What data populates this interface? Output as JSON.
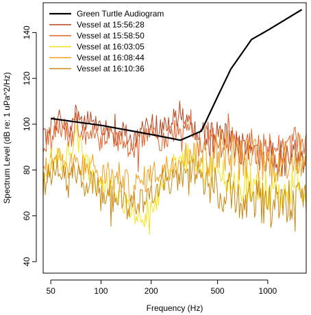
{
  "chart_data": {
    "type": "line",
    "x_scale": "log",
    "xlabel": "Frequency (Hz)",
    "ylabel": "Spectrum Level (dB re: 1 uPa^2/Hz)",
    "xlim": [
      45,
      1700
    ],
    "ylim": [
      35,
      153
    ],
    "x_ticks": [
      50,
      100,
      200,
      500,
      1000
    ],
    "y_ticks": [
      40,
      60,
      80,
      100,
      120,
      140
    ],
    "grid": false,
    "legend_position": "top-left",
    "audiogram": {
      "name": "Green Turtle Audiogram",
      "color": "#000000",
      "x": [
        50,
        100,
        200,
        300,
        400,
        500,
        600,
        800,
        1000,
        1600
      ],
      "y": [
        102.5,
        99.5,
        95.5,
        93,
        97,
        112,
        124,
        137,
        141,
        150
      ]
    },
    "vessels": [
      {
        "name": "Vessel at 15:56:28",
        "color": "#b5441f",
        "anchors_x": [
          45,
          50,
          55,
          60,
          65,
          70,
          75,
          80,
          90,
          100,
          110,
          120,
          130,
          150,
          170,
          200,
          230,
          260,
          300,
          350,
          400,
          450,
          500,
          600,
          700,
          800,
          1000,
          1200,
          1400,
          1700
        ],
        "anchors_y": [
          94,
          98,
          103,
          100,
          96,
          106,
          103,
          99,
          104,
          96,
          100,
          92,
          99,
          93,
          95,
          101,
          97,
          100,
          106,
          98,
          95,
          93,
          95,
          92,
          90,
          89,
          86,
          85,
          86,
          87
        ],
        "amplitude": 5
      },
      {
        "name": "Vessel at 15:58:50",
        "color": "#e0622c",
        "anchors_x": [
          45,
          50,
          55,
          60,
          65,
          70,
          75,
          80,
          90,
          100,
          110,
          120,
          130,
          150,
          170,
          200,
          230,
          260,
          300,
          350,
          400,
          450,
          500,
          600,
          700,
          800,
          1000,
          1200,
          1400,
          1700
        ],
        "anchors_y": [
          91,
          95,
          100,
          98,
          92,
          102,
          97,
          96,
          97,
          92,
          97,
          90,
          95,
          88,
          92,
          96,
          92,
          96,
          100,
          96,
          92,
          92,
          93,
          91,
          89,
          90,
          88,
          89,
          91,
          92
        ],
        "amplitude": 5
      },
      {
        "name": "Vessel at 16:03:05",
        "color": "#f5e31c",
        "anchors_x": [
          45,
          50,
          55,
          60,
          65,
          70,
          75,
          80,
          90,
          100,
          110,
          120,
          130,
          150,
          170,
          200,
          230,
          260,
          300,
          350,
          400,
          450,
          500,
          600,
          700,
          800,
          1000,
          1200,
          1400,
          1700
        ],
        "anchors_y": [
          80,
          84,
          85,
          83,
          88,
          96,
          89,
          84,
          78,
          72,
          74,
          68,
          70,
          62,
          57,
          64,
          72,
          80,
          84,
          86,
          82,
          80,
          78,
          75,
          73,
          72,
          71,
          72,
          73,
          74
        ],
        "amplitude": 6
      },
      {
        "name": "Vessel at 16:08:44",
        "color": "#f2a020",
        "anchors_x": [
          45,
          50,
          55,
          60,
          65,
          70,
          75,
          80,
          90,
          100,
          110,
          120,
          130,
          150,
          170,
          200,
          230,
          260,
          300,
          350,
          400,
          450,
          500,
          600,
          700,
          800,
          1000,
          1200,
          1400,
          1700
        ],
        "anchors_y": [
          78,
          82,
          87,
          84,
          80,
          86,
          84,
          80,
          82,
          76,
          80,
          75,
          78,
          72,
          74,
          78,
          80,
          82,
          86,
          88,
          86,
          85,
          90,
          88,
          84,
          86,
          82,
          84,
          86,
          84
        ],
        "amplitude": 6
      },
      {
        "name": "Vessel at 16:10:36",
        "color": "#c9860f",
        "anchors_x": [
          45,
          50,
          55,
          60,
          65,
          70,
          75,
          80,
          90,
          100,
          110,
          120,
          130,
          150,
          170,
          200,
          230,
          260,
          300,
          350,
          400,
          450,
          500,
          600,
          700,
          800,
          1000,
          1200,
          1400,
          1700
        ],
        "anchors_y": [
          74,
          78,
          80,
          77,
          74,
          80,
          76,
          72,
          75,
          68,
          72,
          66,
          70,
          64,
          66,
          70,
          73,
          75,
          78,
          80,
          77,
          75,
          72,
          70,
          68,
          67,
          66,
          66,
          67,
          68
        ],
        "amplitude": 6
      }
    ]
  }
}
